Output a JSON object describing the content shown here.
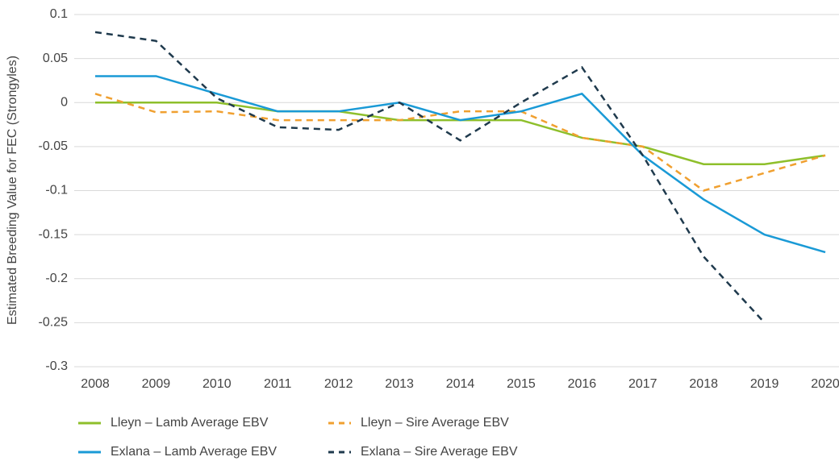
{
  "chart_data": {
    "type": "line",
    "y_label": "Estimated Breeding Value for FEC (Strongyles)",
    "categories": [
      "2008",
      "2009",
      "2010",
      "2011",
      "2012",
      "2013",
      "2014",
      "2015",
      "2016",
      "2017",
      "2018",
      "2019",
      "2020"
    ],
    "series": [
      {
        "name": "Lleyn – Lamb Average  EBV",
        "color": "#8ebf2b",
        "dashed": false,
        "values": [
          0,
          0,
          0,
          -0.01,
          -0.01,
          -0.02,
          -0.02,
          -0.02,
          -0.04,
          -0.05,
          -0.07,
          -0.07,
          -0.06
        ]
      },
      {
        "name": "Lleyn – Sire Average  EBV",
        "color": "#f0a030",
        "dashed": true,
        "values": [
          0.01,
          -0.011,
          -0.01,
          -0.02,
          -0.02,
          -0.02,
          -0.01,
          -0.01,
          -0.04,
          -0.05,
          -0.1,
          -0.08,
          -0.06
        ]
      },
      {
        "name": "Exlana – Lamb Average  EBV",
        "color": "#1a9ad6",
        "dashed": false,
        "values": [
          0.03,
          0.03,
          0.01,
          -0.01,
          -0.01,
          0,
          -0.02,
          -0.01,
          0.01,
          -0.06,
          -0.11,
          -0.15,
          -0.17
        ]
      },
      {
        "name": "Exlana – Sire Average  EBV",
        "color": "#1f3a4d",
        "dashed": true,
        "values": [
          0.08,
          0.07,
          0.005,
          -0.028,
          -0.031,
          0,
          -0.043,
          0,
          0.04,
          -0.06,
          -0.175,
          -0.25,
          null
        ]
      }
    ],
    "ylim": [
      -0.3,
      0.1
    ],
    "yticks": [
      0.1,
      0.05,
      0,
      -0.05,
      -0.1,
      -0.15,
      -0.2,
      -0.25,
      -0.3
    ],
    "grid": true
  }
}
